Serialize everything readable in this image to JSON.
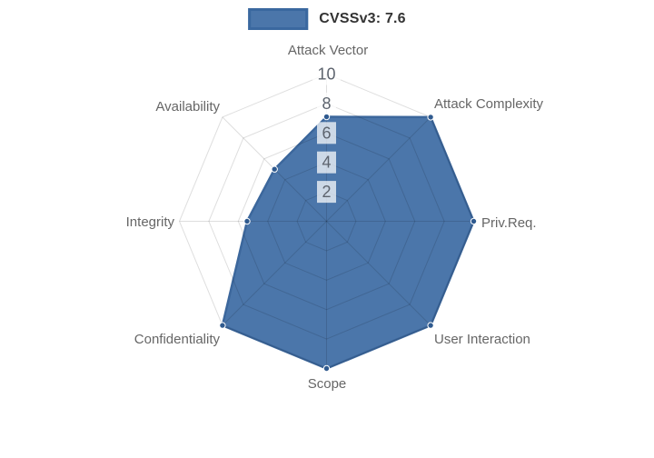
{
  "legend": {
    "label": "CVSSv3: 7.6"
  },
  "chart_data": {
    "type": "radar",
    "title": "",
    "legend_position": "top",
    "legend_entries": [
      "CVSSv3: 7.6"
    ],
    "categories": [
      "Attack Vector",
      "Attack Complexity",
      "Priv.Req.",
      "User Interaction",
      "Scope",
      "Confidentiality",
      "Integrity",
      "Availability"
    ],
    "series": [
      {
        "name": "CVSSv3: 7.6",
        "values": [
          7.1,
          10,
          10,
          10,
          10,
          10,
          5.4,
          5.0
        ]
      }
    ],
    "ticks": [
      "2",
      "4",
      "6",
      "8",
      "10"
    ],
    "tick_values": [
      2,
      4,
      6,
      8,
      10
    ],
    "rmax": 10,
    "grid": "polygonal-web",
    "colors": {
      "fill": "#4b76aa",
      "stroke": "#3c679c",
      "point": "#2f5a8f",
      "grid_line": "rgba(0,0,0,0.13)",
      "tick_backdrop": "rgba(255,255,255,0.72)",
      "tick_text": "#5d646e",
      "axis_label_text": "#666666",
      "legend_text": "#333333"
    }
  }
}
